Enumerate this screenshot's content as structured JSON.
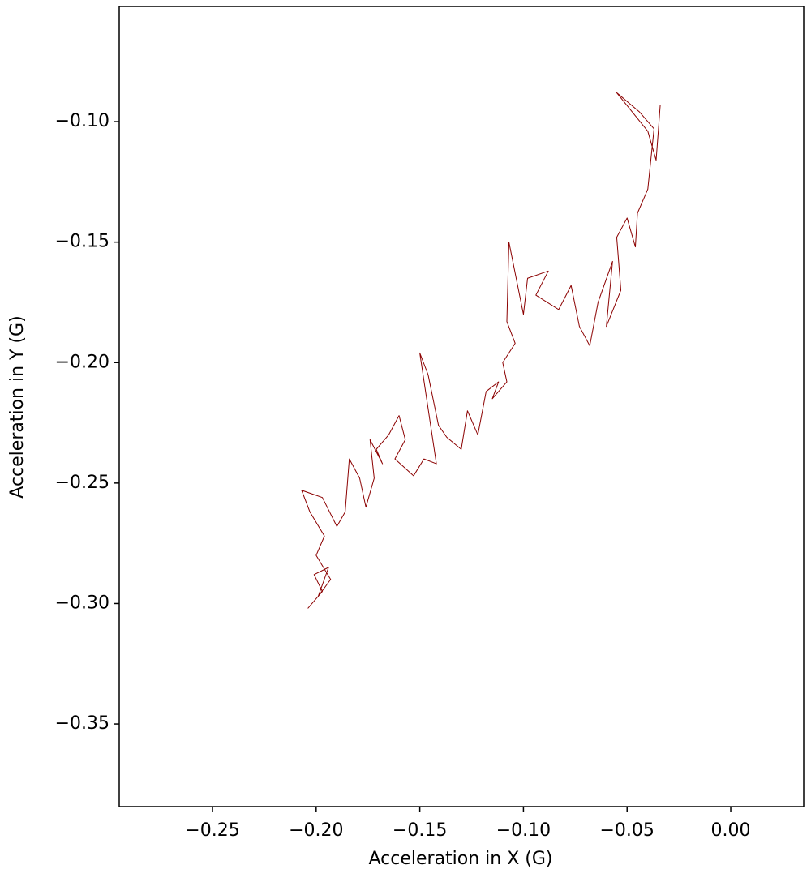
{
  "chart_data": {
    "type": "line",
    "xlabel": "Acceleration in X (G)",
    "ylabel": "Acceleration in Y (G)",
    "color": "#8b0000",
    "xlim": [
      -0.295,
      0.0352
    ],
    "ylim": [
      -0.3843,
      -0.0522
    ],
    "xticks": [
      {
        "value": -0.25,
        "label": "−0.25"
      },
      {
        "value": -0.2,
        "label": "−0.20"
      },
      {
        "value": -0.15,
        "label": "−0.15"
      },
      {
        "value": -0.1,
        "label": "−0.10"
      },
      {
        "value": -0.05,
        "label": "−0.05"
      },
      {
        "value": 0,
        "label": "0.00"
      }
    ],
    "yticks": [
      {
        "value": -0.1,
        "label": "−0.10"
      },
      {
        "value": -0.15,
        "label": "−0.15"
      },
      {
        "value": -0.2,
        "label": "−0.20"
      },
      {
        "value": -0.25,
        "label": "−0.25"
      },
      {
        "value": -0.3,
        "label": "−0.30"
      },
      {
        "value": -0.35,
        "label": "−0.35"
      }
    ],
    "x": [
      -0.204,
      -0.197,
      -0.201,
      -0.194,
      -0.199,
      -0.193,
      -0.2,
      -0.196,
      -0.203,
      -0.207,
      -0.197,
      -0.19,
      -0.186,
      -0.184,
      -0.179,
      -0.176,
      -0.172,
      -0.174,
      -0.168,
      -0.171,
      -0.165,
      -0.16,
      -0.157,
      -0.162,
      -0.153,
      -0.148,
      -0.142,
      -0.15,
      -0.146,
      -0.141,
      -0.137,
      -0.13,
      -0.127,
      -0.122,
      -0.118,
      -0.112,
      -0.115,
      -0.108,
      -0.11,
      -0.104,
      -0.108,
      -0.107,
      -0.1,
      -0.098,
      -0.088,
      -0.094,
      -0.083,
      -0.077,
      -0.073,
      -0.068,
      -0.064,
      -0.057,
      -0.06,
      -0.053,
      -0.055,
      -0.05,
      -0.046,
      -0.045,
      -0.04,
      -0.037,
      -0.044,
      -0.055,
      -0.04,
      -0.036,
      -0.034
    ],
    "values": [
      -0.302,
      -0.295,
      -0.288,
      -0.285,
      -0.297,
      -0.29,
      -0.28,
      -0.272,
      -0.262,
      -0.253,
      -0.256,
      -0.268,
      -0.262,
      -0.24,
      -0.248,
      -0.26,
      -0.248,
      -0.232,
      -0.242,
      -0.236,
      -0.23,
      -0.222,
      -0.232,
      -0.24,
      -0.247,
      -0.24,
      -0.242,
      -0.196,
      -0.205,
      -0.226,
      -0.231,
      -0.236,
      -0.22,
      -0.23,
      -0.212,
      -0.208,
      -0.215,
      -0.208,
      -0.2,
      -0.192,
      -0.183,
      -0.15,
      -0.18,
      -0.165,
      -0.162,
      -0.172,
      -0.178,
      -0.168,
      -0.185,
      -0.193,
      -0.175,
      -0.158,
      -0.185,
      -0.17,
      -0.148,
      -0.14,
      -0.152,
      -0.138,
      -0.128,
      -0.103,
      -0.096,
      -0.088,
      -0.104,
      -0.116,
      -0.093
    ]
  }
}
